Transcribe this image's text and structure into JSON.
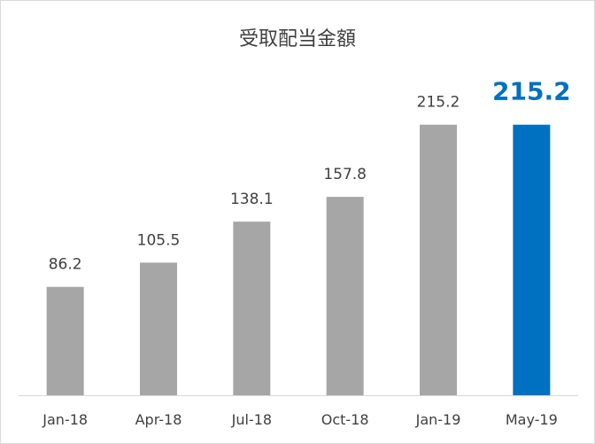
{
  "chart_data": {
    "type": "bar",
    "title": "受取配当金額",
    "categories": [
      "Jan-18",
      "Apr-18",
      "Jul-18",
      "Oct-18",
      "Jan-19",
      "May-19"
    ],
    "values": [
      86.2,
      105.5,
      138.1,
      157.8,
      215.2,
      215.2
    ],
    "value_labels": [
      "86.2",
      "105.5",
      "138.1",
      "157.8",
      "215.2",
      "215.2"
    ],
    "highlight_index": 5,
    "colors": {
      "bar": "#a6a6a6",
      "highlight": "#0070c0",
      "text": "#404040",
      "axis": "#d9d9d9"
    },
    "ylim": [
      0,
      258
    ],
    "grid": false,
    "legend": false,
    "xlabel": "",
    "ylabel": ""
  }
}
